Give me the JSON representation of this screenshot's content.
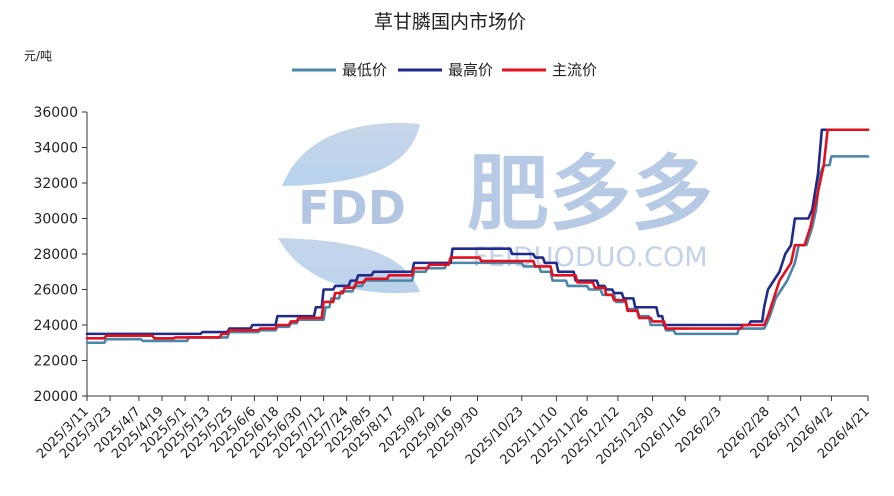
{
  "chart_data": {
    "type": "line",
    "title": "草甘膦国内市场价",
    "unit_label": "元/吨",
    "ylim": [
      20000,
      36000
    ],
    "yticks": [
      20000,
      22000,
      24000,
      26000,
      28000,
      30000,
      32000,
      34000,
      36000
    ],
    "x_start": "2025/3/11",
    "x_end": "2026/4/21",
    "xtick_labels": [
      "2025/3/11",
      "2025/3/23",
      "2025/4/7",
      "2025/4/19",
      "2025/5/1",
      "2025/5/13",
      "2025/5/25",
      "2025/6/6",
      "2025/6/18",
      "2025/6/30",
      "2025/7/12",
      "2025/7/24",
      "2025/8/5",
      "2025/8/17",
      "2025/9/2",
      "2025/9/16",
      "2025/9/30",
      "2025/10/23",
      "2025/11/10",
      "2025/11/26",
      "2025/12/12",
      "2025/12/30",
      "2026/1/16",
      "2026/2/3",
      "2026/2/28",
      "2026/3/17",
      "2026/4/2",
      "2026/4/21"
    ],
    "legend_position": "top",
    "grid": false,
    "series": [
      {
        "name": "最低价",
        "color": "#4a86a8",
        "values": [
          [
            "2025/3/11",
            23000
          ],
          [
            "2025/3/20",
            23000
          ],
          [
            "2025/3/21",
            23200
          ],
          [
            "2025/4/8",
            23200
          ],
          [
            "2025/4/9",
            23100
          ],
          [
            "2025/5/2",
            23100
          ],
          [
            "2025/5/3",
            23300
          ],
          [
            "2025/5/23",
            23300
          ],
          [
            "2025/5/24",
            23600
          ],
          [
            "2025/6/8",
            23600
          ],
          [
            "2025/6/9",
            23700
          ],
          [
            "2025/6/17",
            23700
          ],
          [
            "2025/6/18",
            23900
          ],
          [
            "2025/6/24",
            23900
          ],
          [
            "2025/6/25",
            24100
          ],
          [
            "2025/6/28",
            24100
          ],
          [
            "2025/6/29",
            24300
          ],
          [
            "2025/7/12",
            24300
          ],
          [
            "2025/7/13",
            25000
          ],
          [
            "2025/7/15",
            25000
          ],
          [
            "2025/7/16",
            25500
          ],
          [
            "2025/7/20",
            25500
          ],
          [
            "2025/7/21",
            25900
          ],
          [
            "2025/7/27",
            25900
          ],
          [
            "2025/7/28",
            26200
          ],
          [
            "2025/8/1",
            26200
          ],
          [
            "2025/8/2",
            26500
          ],
          [
            "2025/8/27",
            26500
          ],
          [
            "2025/8/28",
            27000
          ],
          [
            "2025/9/3",
            27000
          ],
          [
            "2025/9/4",
            27200
          ],
          [
            "2025/9/13",
            27200
          ],
          [
            "2025/9/14",
            27500
          ],
          [
            "2025/10/23",
            27500
          ],
          [
            "2025/10/24",
            27300
          ],
          [
            "2025/11/1",
            27300
          ],
          [
            "2025/11/2",
            27000
          ],
          [
            "2025/11/7",
            27000
          ],
          [
            "2025/11/8",
            26500
          ],
          [
            "2025/11/15",
            26500
          ],
          [
            "2025/11/16",
            26200
          ],
          [
            "2025/11/26",
            26200
          ],
          [
            "2025/11/27",
            26000
          ],
          [
            "2025/12/3",
            26000
          ],
          [
            "2025/12/4",
            25700
          ],
          [
            "2025/12/10",
            25700
          ],
          [
            "2025/12/11",
            25300
          ],
          [
            "2025/12/16",
            25300
          ],
          [
            "2025/12/17",
            24900
          ],
          [
            "2025/12/22",
            24900
          ],
          [
            "2025/12/23",
            24500
          ],
          [
            "2025/12/28",
            24500
          ],
          [
            "2025/12/29",
            24000
          ],
          [
            "2026/1/5",
            24000
          ],
          [
            "2026/1/6",
            23700
          ],
          [
            "2026/1/10",
            23700
          ],
          [
            "2026/1/11",
            23500
          ],
          [
            "2026/2/12",
            23500
          ],
          [
            "2026/2/13",
            23800
          ],
          [
            "2026/2/26",
            23800
          ],
          [
            "2026/2/27",
            24000
          ],
          [
            "2026/3/1",
            24500
          ],
          [
            "2026/3/4",
            25500
          ],
          [
            "2026/3/7",
            26000
          ],
          [
            "2026/3/10",
            26500
          ],
          [
            "2026/3/14",
            27500
          ],
          [
            "2026/3/16",
            28500
          ],
          [
            "2026/3/20",
            28500
          ],
          [
            "2026/3/23",
            29500
          ],
          [
            "2026/3/25",
            30500
          ],
          [
            "2026/3/27",
            32500
          ],
          [
            "2026/3/29",
            33000
          ],
          [
            "2026/4/1",
            33000
          ],
          [
            "2026/4/2",
            33500
          ],
          [
            "2026/4/21",
            33500
          ]
        ]
      },
      {
        "name": "最高价",
        "color": "#1f2a8a",
        "values": [
          [
            "2025/3/11",
            23500
          ],
          [
            "2025/5/9",
            23500
          ],
          [
            "2025/5/10",
            23600
          ],
          [
            "2025/5/23",
            23600
          ],
          [
            "2025/5/24",
            23800
          ],
          [
            "2025/6/4",
            23800
          ],
          [
            "2025/6/5",
            24000
          ],
          [
            "2025/6/17",
            24000
          ],
          [
            "2025/6/18",
            24500
          ],
          [
            "2025/6/28",
            24500
          ],
          [
            "2025/6/29",
            24500
          ],
          [
            "2025/7/7",
            24500
          ],
          [
            "2025/7/8",
            25000
          ],
          [
            "2025/7/11",
            25000
          ],
          [
            "2025/7/12",
            26000
          ],
          [
            "2025/7/17",
            26000
          ],
          [
            "2025/7/18",
            26200
          ],
          [
            "2025/7/25",
            26200
          ],
          [
            "2025/7/26",
            26500
          ],
          [
            "2025/7/29",
            26500
          ],
          [
            "2025/7/30",
            26800
          ],
          [
            "2025/8/6",
            26800
          ],
          [
            "2025/8/7",
            27000
          ],
          [
            "2025/8/27",
            27000
          ],
          [
            "2025/8/28",
            27500
          ],
          [
            "2025/9/16",
            27500
          ],
          [
            "2025/9/17",
            28300
          ],
          [
            "2025/10/17",
            28300
          ],
          [
            "2025/10/18",
            28000
          ],
          [
            "2025/10/29",
            28000
          ],
          [
            "2025/10/30",
            27800
          ],
          [
            "2025/11/3",
            27800
          ],
          [
            "2025/11/4",
            27500
          ],
          [
            "2025/11/10",
            27500
          ],
          [
            "2025/11/11",
            27000
          ],
          [
            "2025/11/19",
            27000
          ],
          [
            "2025/11/20",
            26500
          ],
          [
            "2025/12/1",
            26500
          ],
          [
            "2025/12/2",
            26200
          ],
          [
            "2025/12/5",
            26200
          ],
          [
            "2025/12/6",
            26000
          ],
          [
            "2025/12/9",
            26000
          ],
          [
            "2025/12/10",
            25800
          ],
          [
            "2025/12/14",
            25800
          ],
          [
            "2025/12/15",
            25500
          ],
          [
            "2025/12/20",
            25500
          ],
          [
            "2025/12/21",
            25000
          ],
          [
            "2026/1/1",
            25000
          ],
          [
            "2026/1/2",
            24500
          ],
          [
            "2026/1/4",
            24500
          ],
          [
            "2026/1/5",
            24000
          ],
          [
            "2026/2/18",
            24000
          ],
          [
            "2026/2/19",
            24200
          ],
          [
            "2026/2/25",
            24200
          ],
          [
            "2026/2/26",
            25000
          ],
          [
            "2026/2/28",
            26000
          ],
          [
            "2026/3/3",
            26500
          ],
          [
            "2026/3/6",
            27000
          ],
          [
            "2026/3/9",
            28000
          ],
          [
            "2026/3/12",
            28500
          ],
          [
            "2026/3/14",
            30000
          ],
          [
            "2026/3/21",
            30000
          ],
          [
            "2026/3/23",
            30500
          ],
          [
            "2026/3/26",
            32500
          ],
          [
            "2026/3/28",
            35000
          ],
          [
            "2026/4/21",
            35000
          ]
        ]
      },
      {
        "name": "主流价",
        "color": "#e3101e",
        "values": [
          [
            "2025/3/11",
            23250
          ],
          [
            "2025/3/20",
            23250
          ],
          [
            "2025/3/21",
            23400
          ],
          [
            "2025/4/14",
            23400
          ],
          [
            "2025/4/15",
            23250
          ],
          [
            "2025/4/25",
            23250
          ],
          [
            "2025/4/26",
            23300
          ],
          [
            "2025/5/19",
            23300
          ],
          [
            "2025/5/20",
            23500
          ],
          [
            "2025/5/23",
            23500
          ],
          [
            "2025/5/24",
            23700
          ],
          [
            "2025/6/8",
            23700
          ],
          [
            "2025/6/9",
            23800
          ],
          [
            "2025/6/17",
            23800
          ],
          [
            "2025/6/18",
            24000
          ],
          [
            "2025/6/24",
            24000
          ],
          [
            "2025/6/25",
            24200
          ],
          [
            "2025/6/28",
            24200
          ],
          [
            "2025/6/29",
            24400
          ],
          [
            "2025/7/11",
            24400
          ],
          [
            "2025/7/12",
            25300
          ],
          [
            "2025/7/17",
            25300
          ],
          [
            "2025/7/18",
            25800
          ],
          [
            "2025/7/22",
            25800
          ],
          [
            "2025/7/23",
            26100
          ],
          [
            "2025/7/28",
            26100
          ],
          [
            "2025/7/29",
            26400
          ],
          [
            "2025/8/2",
            26400
          ],
          [
            "2025/8/3",
            26600
          ],
          [
            "2025/8/14",
            26600
          ],
          [
            "2025/8/15",
            26800
          ],
          [
            "2025/8/27",
            26800
          ],
          [
            "2025/8/28",
            27200
          ],
          [
            "2025/9/4",
            27200
          ],
          [
            "2025/9/5",
            27400
          ],
          [
            "2025/9/15",
            27400
          ],
          [
            "2025/9/16",
            27800
          ],
          [
            "2025/10/1",
            27800
          ],
          [
            "2025/10/2",
            27600
          ],
          [
            "2025/10/29",
            27600
          ],
          [
            "2025/10/30",
            27300
          ],
          [
            "2025/11/7",
            27300
          ],
          [
            "2025/11/8",
            26800
          ],
          [
            "2025/11/20",
            26800
          ],
          [
            "2025/11/21",
            26400
          ],
          [
            "2025/11/29",
            26400
          ],
          [
            "2025/11/30",
            26100
          ],
          [
            "2025/12/5",
            26100
          ],
          [
            "2025/12/6",
            25700
          ],
          [
            "2025/12/9",
            25700
          ],
          [
            "2025/12/10",
            25400
          ],
          [
            "2025/12/16",
            25400
          ],
          [
            "2025/12/17",
            24800
          ],
          [
            "2025/12/22",
            24800
          ],
          [
            "2025/12/23",
            24400
          ],
          [
            "2025/12/29",
            24400
          ],
          [
            "2025/12/30",
            24200
          ],
          [
            "2026/1/5",
            24200
          ],
          [
            "2026/1/6",
            23800
          ],
          [
            "2026/2/14",
            23800
          ],
          [
            "2026/2/15",
            24000
          ],
          [
            "2026/2/26",
            24000
          ],
          [
            "2026/2/28",
            24500
          ],
          [
            "2026/3/3",
            25500
          ],
          [
            "2026/3/6",
            26500
          ],
          [
            "2026/3/9",
            27000
          ],
          [
            "2026/3/12",
            27500
          ],
          [
            "2026/3/14",
            28500
          ],
          [
            "2026/3/19",
            28500
          ],
          [
            "2026/3/22",
            29500
          ],
          [
            "2026/3/25",
            31000
          ],
          [
            "2026/3/27",
            32000
          ],
          [
            "2026/3/29",
            33000
          ],
          [
            "2026/3/31",
            35000
          ],
          [
            "2026/4/21",
            35000
          ]
        ]
      }
    ]
  },
  "watermark": {
    "badge_text": "FDD",
    "brand_text": "肥多多",
    "url_text": "FEIDUODUO.COM"
  }
}
